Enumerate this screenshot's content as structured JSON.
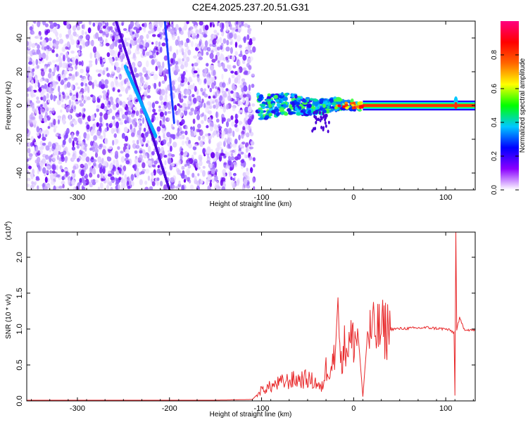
{
  "title": "C2E4.2025.237.20.51.G31",
  "chart_data": [
    {
      "type": "heatmap",
      "xlabel": "Height of straight line (km)",
      "ylabel": "Frequency (Hz)",
      "xlim": [
        -355,
        132
      ],
      "ylim": [
        -50,
        50
      ],
      "x_ticks": [
        -300,
        -200,
        -100,
        0,
        100
      ],
      "y_ticks": [
        -40,
        -20,
        0,
        20,
        40
      ],
      "colorbar": {
        "label": "Normalized spectral amplitude",
        "ticks": [
          0.0,
          0.2,
          0.4,
          0.6,
          0.8
        ],
        "tick_labels": [
          "0.0",
          "0.2",
          "0.4",
          "0.6",
          "0.8"
        ],
        "range": [
          0,
          1
        ],
        "colors": [
          "#ffffff",
          "#8a00ff",
          "#0000ff",
          "#00c8ff",
          "#00ff00",
          "#ffff00",
          "#ff6600",
          "#ff0000",
          "#ff0080"
        ]
      },
      "features": {
        "noise_region_x": [
          -355,
          -108
        ],
        "streak_1": {
          "x": [
            -258,
            -200
          ],
          "y": [
            50,
            -50
          ]
        },
        "streak_2": {
          "x": [
            -248,
            -215
          ],
          "y": [
            23,
            -18
          ]
        },
        "streak_3": {
          "x": [
            -205,
            -195
          ],
          "y": [
            50,
            -10
          ]
        },
        "signal_band_center_hz": 0
      }
    },
    {
      "type": "line",
      "xlabel": "Height of straight line (km)",
      "ylabel": "SNR (10 * v/v)",
      "y_exponent_label": "(x10",
      "y_exponent_sup": "4",
      "xlim": [
        -355,
        132
      ],
      "ylim": [
        0,
        2.35
      ],
      "x_ticks": [
        -300,
        -200,
        -100,
        0,
        100
      ],
      "y_ticks": [
        0.0,
        0.5,
        1.0,
        1.5,
        2.0
      ],
      "y_tick_labels": [
        "0.0",
        "0.5",
        "1.0",
        "1.5",
        "2.0"
      ],
      "series": [
        {
          "color": "#e8292b",
          "x": [
            -355,
            -300,
            -250,
            -200,
            -150,
            -110,
            -100,
            -90,
            -80,
            -70,
            -60,
            -50,
            -40,
            -35,
            -30,
            -25,
            -20,
            -17,
            -15,
            -12,
            -10,
            -5,
            0,
            5,
            10,
            15,
            20,
            30,
            40,
            60,
            80,
            100,
            105,
            109,
            110,
            111,
            112,
            115,
            120,
            132
          ],
          "y": [
            0.01,
            0.01,
            0.01,
            0.01,
            0.01,
            0.02,
            0.15,
            0.2,
            0.25,
            0.28,
            0.3,
            0.3,
            0.25,
            0.15,
            0.45,
            0.5,
            0.65,
            1.44,
            0.6,
            0.7,
            0.75,
            0.8,
            0.85,
            0.9,
            0.06,
            0.92,
            0.95,
            0.98,
            1.0,
            1.01,
            1.02,
            1.0,
            0.98,
            0.95,
            0.07,
            2.35,
            1.0,
            1.15,
            1.0,
            0.98
          ]
        }
      ]
    }
  ]
}
